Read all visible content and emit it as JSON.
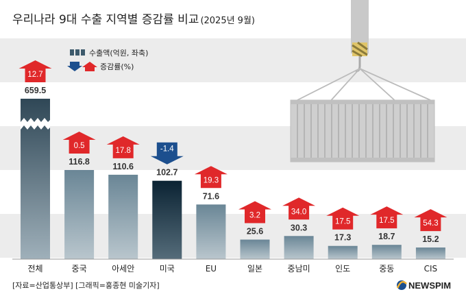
{
  "chart_data": {
    "type": "bar",
    "title": "우리나라 9대 수출 지역별 증감률 비교",
    "subtitle": "(2025년 9월)",
    "categories": [
      "전체",
      "중국",
      "아세안",
      "미국",
      "EU",
      "일본",
      "중남미",
      "인도",
      "중동",
      "CIS"
    ],
    "series": [
      {
        "name": "수출액(억원, 좌축)",
        "values": [
          659.5,
          116.8,
          110.6,
          102.7,
          71.6,
          25.6,
          30.3,
          17.3,
          18.7,
          15.2
        ]
      },
      {
        "name": "증감률(%)",
        "values": [
          12.7,
          0.5,
          17.8,
          -1.4,
          19.3,
          3.2,
          34.0,
          17.5,
          17.5,
          54.3
        ]
      }
    ],
    "value_labels": [
      "659.5",
      "116.8",
      "110.6",
      "102.7",
      "71.6",
      "25.6",
      "30.3",
      "17.3",
      "18.7",
      "15.2"
    ],
    "change_labels": [
      "12.7",
      "0.5",
      "17.8",
      "-1.4",
      "19.3",
      "3.2",
      "34.0",
      "17.5",
      "17.5",
      "54.3"
    ],
    "axis_break": "전체",
    "highlight": "미국",
    "legend": {
      "export_label": "수출액(억원, 좌축)",
      "change_label": "증감률(%)"
    }
  },
  "footer": {
    "source": "[자료=산업통상부] [그래픽=홍종현 미술기자]",
    "brand": "NEWSPIM"
  },
  "colors": {
    "bar": "#5f7a8a",
    "bar_highlight": "#0f2a3a",
    "bar_total": "#354d5d",
    "up": "#e0282a",
    "down": "#1c4f8e",
    "band": "#ececec"
  }
}
